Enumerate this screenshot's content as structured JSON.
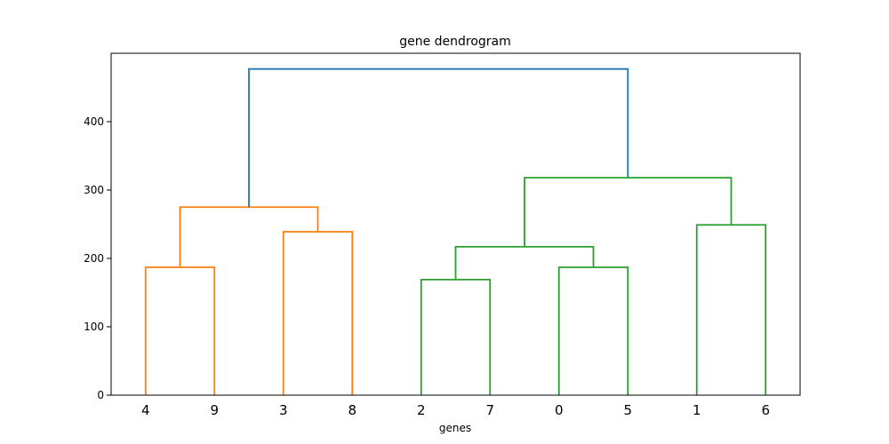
{
  "chart_data": {
    "type": "dendrogram",
    "title": "gene dendrogram",
    "xlabel": "genes",
    "ylabel": "",
    "ylim": [
      0,
      500
    ],
    "yticks": [
      0,
      100,
      200,
      300,
      400
    ],
    "leaves": [
      "4",
      "9",
      "3",
      "8",
      "2",
      "7",
      "0",
      "5",
      "1",
      "6"
    ],
    "links": [
      {
        "left": "4",
        "right": "9",
        "height": 187,
        "color": "#ff7f0e"
      },
      {
        "left": "3",
        "right": "8",
        "height": 239,
        "color": "#ff7f0e"
      },
      {
        "left": "(4,9)",
        "right": "(3,8)",
        "height": 275,
        "color": "#ff7f0e"
      },
      {
        "left": "2",
        "right": "7",
        "height": 169,
        "color": "#2ca02c"
      },
      {
        "left": "0",
        "right": "5",
        "height": 187,
        "color": "#2ca02c"
      },
      {
        "left": "(2,7)",
        "right": "(0,5)",
        "height": 217,
        "color": "#2ca02c"
      },
      {
        "left": "1",
        "right": "6",
        "height": 249,
        "color": "#2ca02c"
      },
      {
        "left": "(2,7,0,5)",
        "right": "(1,6)",
        "height": 318,
        "color": "#2ca02c"
      },
      {
        "left": "(4,9,3,8)",
        "right": "(2,7,0,5,1,6)",
        "height": 477,
        "color": "#1f77b4"
      }
    ]
  }
}
